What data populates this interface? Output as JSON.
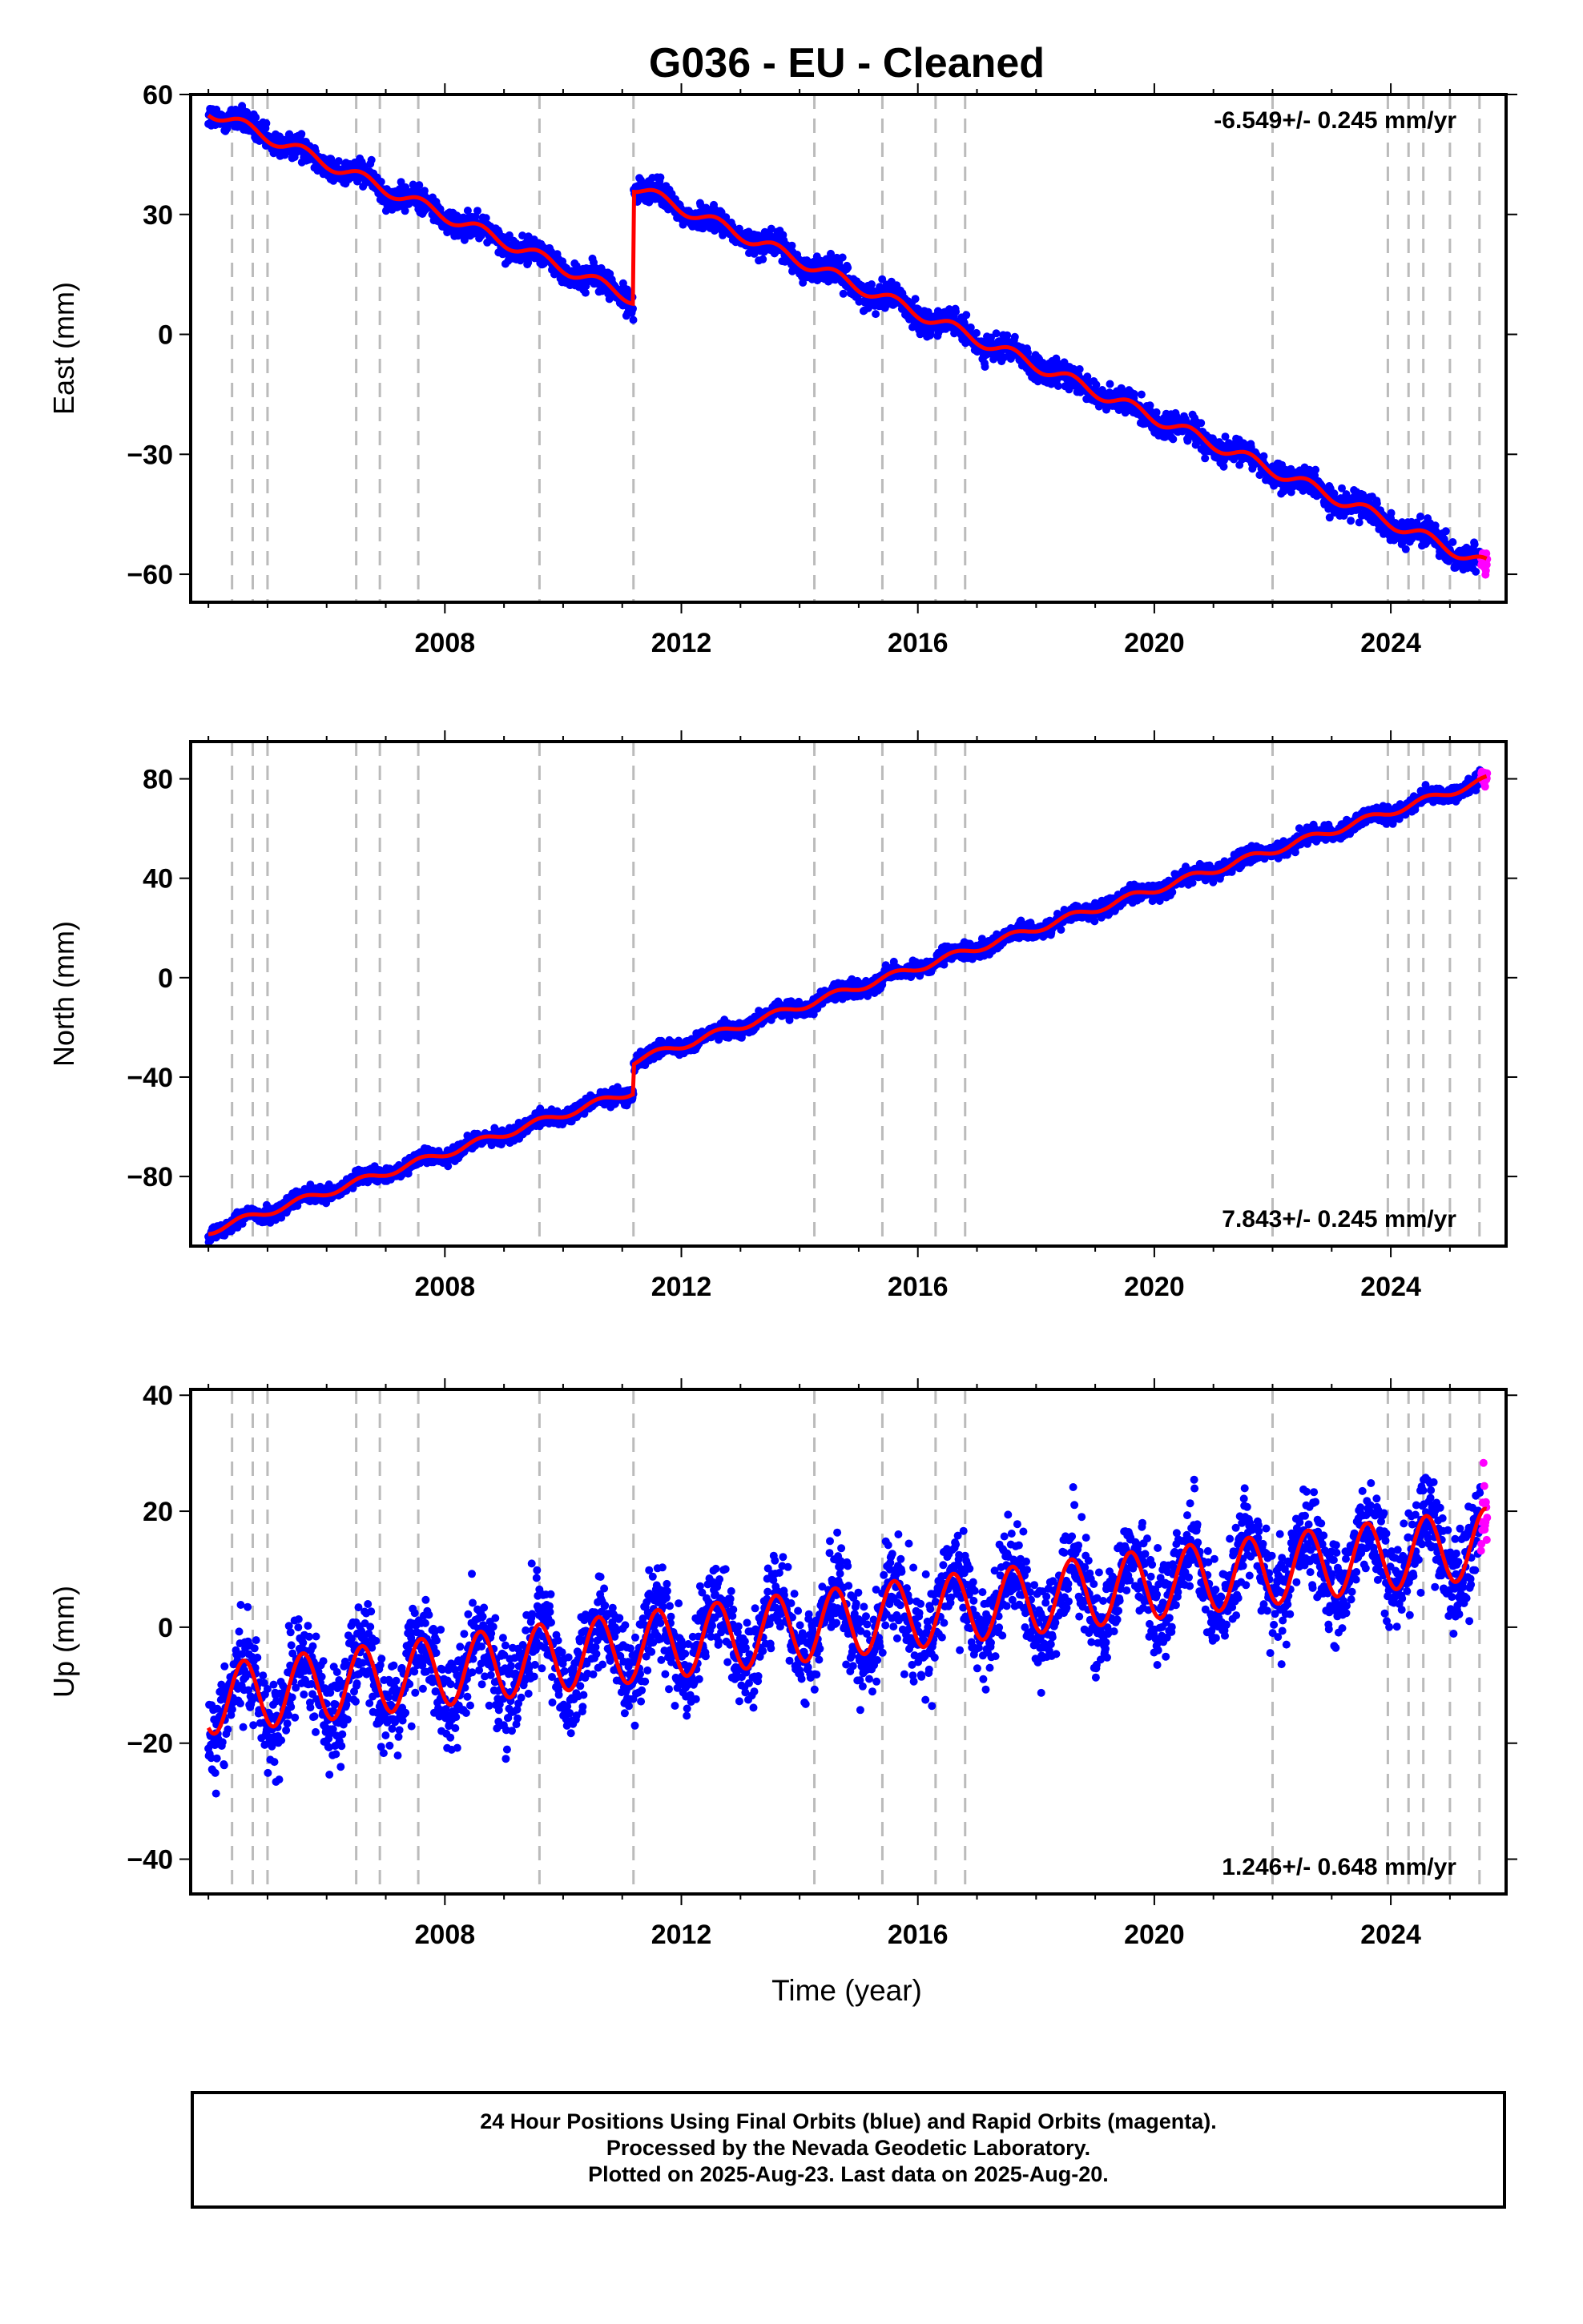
{
  "title": "G036  - EU - Cleaned",
  "xlabel": "Time (year)",
  "caption": [
    "24 Hour Positions Using Final Orbits (blue) and Rapid Orbits (magenta).",
    "Processed by the Nevada Geodetic Laboratory.",
    "Plotted on 2025-Aug-23. Last data on 2025-Aug-20."
  ],
  "colors": {
    "final": "#0000ff",
    "rapid": "#ff00ff",
    "model": "#ff0000",
    "events": "#bbbbbb"
  },
  "chart_data": [
    {
      "type": "scatter",
      "component": "east",
      "ylabel": "East (mm)",
      "rate_label": "-6.549+/- 0.245 mm/yr",
      "rate_position": "top-right",
      "xlim": [
        2003.7,
        2025.95
      ],
      "ylim": [
        -67,
        60
      ],
      "xticks": [
        2008,
        2012,
        2016,
        2020,
        2024
      ],
      "yticks": [
        60,
        30,
        0,
        -30,
        -60
      ],
      "trend": {
        "rate": -6.549,
        "offsets": [
          {
            "t": 2011.19,
            "step": 28
          }
        ]
      },
      "anchor": {
        "t": 2004.0,
        "v": 56
      },
      "seasonal_amp": 1.5,
      "scatter": 1.6
    },
    {
      "type": "scatter",
      "component": "north",
      "ylabel": "North (mm)",
      "rate_label": "7.843+/- 0.245 mm/yr",
      "rate_position": "bottom-right",
      "xlim": [
        2003.7,
        2025.95
      ],
      "ylim": [
        -108,
        95
      ],
      "xticks": [
        2008,
        2012,
        2016,
        2020,
        2024
      ],
      "yticks": [
        80,
        40,
        0,
        -40,
        -80
      ],
      "trend": {
        "rate": 7.843,
        "offsets": [
          {
            "t": 2011.19,
            "step": 12
          }
        ]
      },
      "anchor": {
        "t": 2004.0,
        "v": -102
      },
      "seasonal_amp": 1.5,
      "scatter": 1.6
    },
    {
      "type": "scatter",
      "component": "up",
      "ylabel": "Up (mm)",
      "rate_label": "1.246+/- 0.648 mm/yr",
      "rate_position": "bottom-right",
      "xlim": [
        2003.7,
        2025.95
      ],
      "ylim": [
        -46,
        41
      ],
      "xticks": [
        2008,
        2012,
        2016,
        2020,
        2024
      ],
      "yticks": [
        40,
        20,
        0,
        -20,
        -40
      ],
      "trend": {
        "rate": 1.246,
        "offsets": []
      },
      "anchor": {
        "t": 2006.0,
        "v": -10
      },
      "seasonal_amp": 6,
      "scatter": 4.2
    }
  ],
  "event_lines": [
    2004.4,
    2004.75,
    2005.0,
    2006.5,
    2006.9,
    2007.55,
    2009.6,
    2011.19,
    2014.25,
    2015.4,
    2016.3,
    2016.8,
    2022.0,
    2023.95,
    2024.3,
    2024.55,
    2025.0,
    2025.5
  ],
  "data_span": {
    "start": 2004.0,
    "end": 2025.63,
    "rapid_start": 2025.52
  }
}
